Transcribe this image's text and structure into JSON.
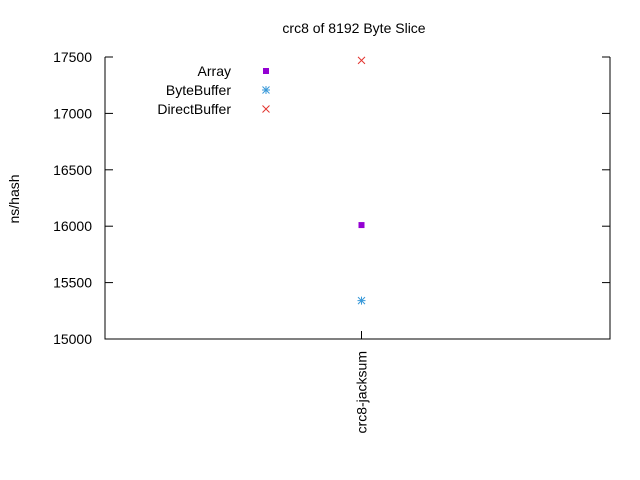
{
  "chart_data": {
    "type": "scatter",
    "title": "crc8 of 8192 Byte Slice",
    "xlabel": "",
    "ylabel": "ns/hash",
    "categories": [
      "crc8-jacksum"
    ],
    "ylim": [
      15000,
      17500
    ],
    "yticks": [
      15000,
      15500,
      16000,
      16500,
      17000,
      17500
    ],
    "grid": false,
    "legend_position": "top-left",
    "series": [
      {
        "name": "Array",
        "marker": "square",
        "color": "#9400d3",
        "values": [
          16010
        ]
      },
      {
        "name": "ByteBuffer",
        "marker": "star",
        "color": "#3a9ad9",
        "values": [
          15340
        ]
      },
      {
        "name": "DirectBuffer",
        "marker": "x",
        "color": "#e3342f",
        "values": [
          17470
        ]
      }
    ]
  }
}
